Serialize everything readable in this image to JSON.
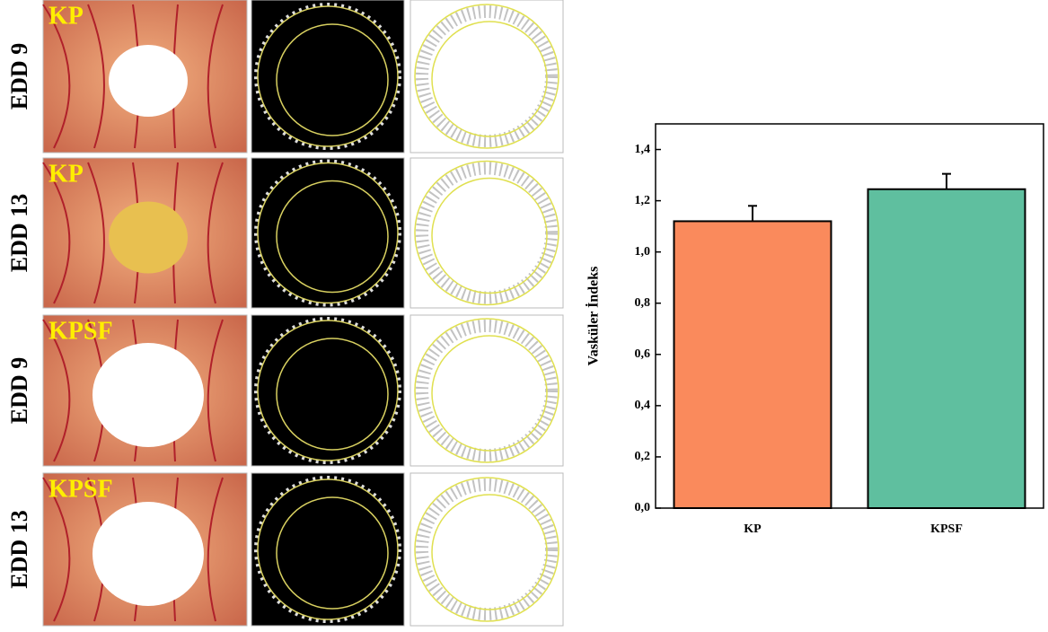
{
  "panels": {
    "row_labels": [
      "EDD 9",
      "EDD 13",
      "EDD 9",
      "EDD 13"
    ],
    "photo_labels": [
      "KP",
      "KP",
      "KPSF",
      "KPSF"
    ]
  },
  "chart_data": {
    "type": "bar",
    "y_label": "Vasküler İndeks",
    "categories": [
      "KP",
      "KPSF"
    ],
    "values": [
      1.12,
      1.245
    ],
    "errors": [
      0.06,
      0.06
    ],
    "colors": [
      "#fa8a5c",
      "#5fbf9f"
    ],
    "ylim": [
      0,
      1.5
    ],
    "yticks": [
      {
        "value": 0,
        "label": "0,0"
      },
      {
        "value": 0.2,
        "label": "0,2"
      },
      {
        "value": 0.4,
        "label": "0,4"
      },
      {
        "value": 0.6,
        "label": "0,6"
      },
      {
        "value": 0.8,
        "label": "0,8"
      },
      {
        "value": 1.0,
        "label": "1,0"
      },
      {
        "value": 1.2,
        "label": "1,2"
      },
      {
        "value": 1.4,
        "label": "1,4"
      }
    ]
  }
}
